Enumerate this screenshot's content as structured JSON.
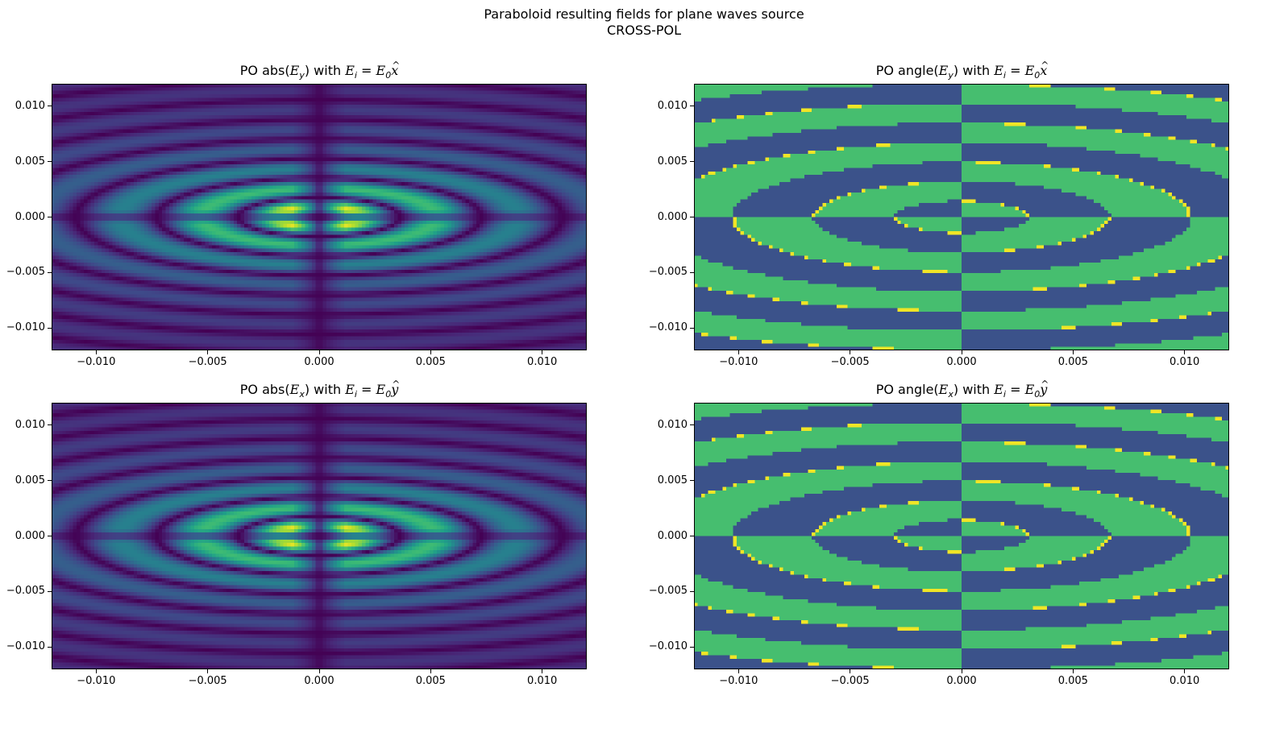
{
  "suptitle": {
    "line1": "Paraboloid resulting fields for plane waves source",
    "line2": "CROSS-POL"
  },
  "colors": {
    "dark": "#440154",
    "mid": "#3b528b",
    "teal": "#21918c",
    "green": "#5ec962",
    "yellow": "#fde725"
  },
  "chart_data": [
    {
      "type": "heatmap",
      "title_prefix": "PO abs(",
      "title_field": "E",
      "title_sub": "y",
      "title_mid": ") with ",
      "title_src": "E",
      "title_src_sub": "i",
      "title_eq": " = ",
      "title_amp": "E",
      "title_amp_sub": "0",
      "title_vec": "x",
      "quantity": "magnitude",
      "colormap": "viridis",
      "xlim": [
        -0.012,
        0.012
      ],
      "ylim": [
        -0.012,
        0.012
      ],
      "xticks": [
        "−0.010",
        "−0.005",
        "0.000",
        "0.005",
        "0.010"
      ],
      "xtick_values": [
        -0.01,
        -0.005,
        0.0,
        0.005,
        0.01
      ],
      "yticks": [
        "0.010",
        "0.005",
        "0.000",
        "−0.005",
        "−0.010"
      ],
      "ytick_values": [
        0.01,
        0.005,
        0.0,
        -0.005,
        -0.01
      ],
      "peaks": [
        [
          -0.001,
          0.0005
        ],
        [
          0.001,
          0.0005
        ],
        [
          -0.001,
          -0.0005
        ],
        [
          0.001,
          -0.0005
        ]
      ]
    },
    {
      "type": "heatmap",
      "title_prefix": "PO angle(",
      "title_field": "E",
      "title_sub": "y",
      "title_mid": ") with ",
      "title_src": "E",
      "title_src_sub": "i",
      "title_eq": " = ",
      "title_amp": "E",
      "title_amp_sub": "0",
      "title_vec": "x",
      "quantity": "phase",
      "colormap": "viridis",
      "xlim": [
        -0.012,
        0.012
      ],
      "ylim": [
        -0.012,
        0.012
      ],
      "xticks": [
        "−0.010",
        "−0.005",
        "0.000",
        "0.005",
        "0.010"
      ],
      "xtick_values": [
        -0.01,
        -0.005,
        0.0,
        0.005,
        0.01
      ],
      "yticks": [
        "0.010",
        "0.005",
        "0.000",
        "−0.005",
        "−0.010"
      ],
      "ytick_values": [
        0.01,
        0.005,
        0.0,
        -0.005,
        -0.01
      ]
    },
    {
      "type": "heatmap",
      "title_prefix": "PO abs(",
      "title_field": "E",
      "title_sub": "x",
      "title_mid": ") with ",
      "title_src": "E",
      "title_src_sub": "i",
      "title_eq": " = ",
      "title_amp": "E",
      "title_amp_sub": "0",
      "title_vec": "y",
      "quantity": "magnitude",
      "colormap": "viridis",
      "xlim": [
        -0.012,
        0.012
      ],
      "ylim": [
        -0.012,
        0.012
      ],
      "xticks": [
        "−0.010",
        "−0.005",
        "0.000",
        "0.005",
        "0.010"
      ],
      "xtick_values": [
        -0.01,
        -0.005,
        0.0,
        0.005,
        0.01
      ],
      "yticks": [
        "0.010",
        "0.005",
        "0.000",
        "−0.005",
        "−0.010"
      ],
      "ytick_values": [
        0.01,
        0.005,
        0.0,
        -0.005,
        -0.01
      ],
      "peaks": [
        [
          -0.001,
          0.0005
        ],
        [
          0.001,
          0.0005
        ],
        [
          -0.001,
          -0.0005
        ],
        [
          0.001,
          -0.0005
        ]
      ]
    },
    {
      "type": "heatmap",
      "title_prefix": "PO angle(",
      "title_field": "E",
      "title_sub": "x",
      "title_mid": ") with ",
      "title_src": "E",
      "title_src_sub": "i",
      "title_eq": " = ",
      "title_amp": "E",
      "title_amp_sub": "0",
      "title_vec": "y",
      "quantity": "phase",
      "colormap": "viridis",
      "xlim": [
        -0.012,
        0.012
      ],
      "ylim": [
        -0.012,
        0.012
      ],
      "xticks": [
        "−0.010",
        "−0.005",
        "0.000",
        "0.005",
        "0.010"
      ],
      "xtick_values": [
        -0.01,
        -0.005,
        0.0,
        0.005,
        0.01
      ],
      "yticks": [
        "0.010",
        "0.005",
        "0.000",
        "−0.005",
        "−0.010"
      ],
      "ytick_values": [
        0.01,
        0.005,
        0.0,
        -0.005,
        -0.01
      ]
    }
  ]
}
